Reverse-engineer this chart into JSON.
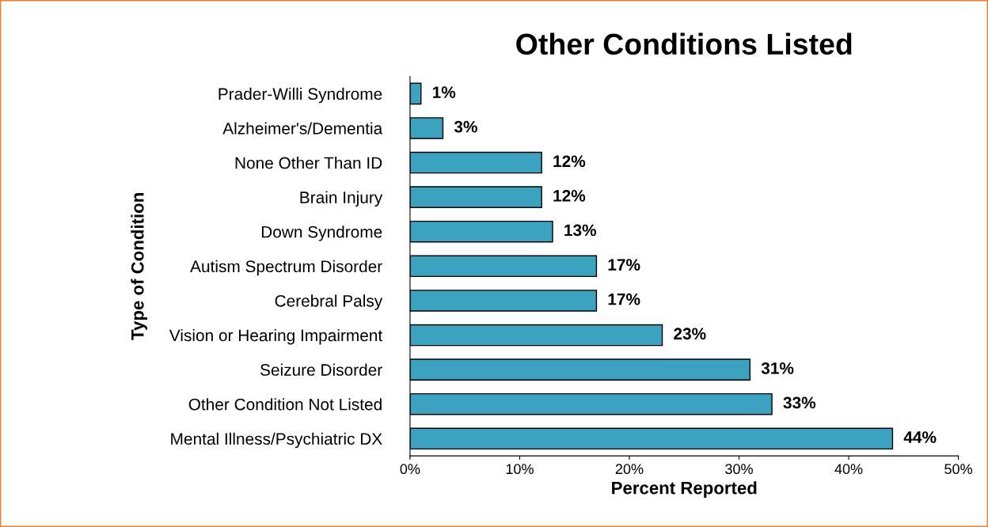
{
  "chart_data": {
    "type": "bar",
    "orientation": "horizontal",
    "title": "Other Conditions Listed",
    "xlabel": "Percent Reported",
    "ylabel": "Type of Condition",
    "categories": [
      "Prader-Willi Syndrome",
      "Alzheimer's/Dementia",
      "None Other Than ID",
      "Brain Injury",
      "Down Syndrome",
      "Autism Spectrum Disorder",
      "Cerebral Palsy",
      "Vision or Hearing Impairment",
      "Seizure Disorder",
      "Other Condition Not Listed",
      "Mental Illness/Psychiatric DX"
    ],
    "values": [
      1,
      3,
      12,
      12,
      13,
      17,
      17,
      23,
      31,
      33,
      44
    ],
    "value_labels": [
      "1%",
      "3%",
      "12%",
      "12%",
      "13%",
      "17%",
      "17%",
      "23%",
      "31%",
      "33%",
      "44%"
    ],
    "color": "#3ba3c0",
    "xlim": [
      0,
      50
    ],
    "xticks": [
      {
        "value": 0,
        "label": "0%"
      },
      {
        "value": 10,
        "label": "10%"
      },
      {
        "value": 20,
        "label": "20%"
      },
      {
        "value": 30,
        "label": "30%"
      },
      {
        "value": 40,
        "label": "40%"
      },
      {
        "value": 50,
        "label": "50%"
      }
    ],
    "grid": false,
    "legend": false
  }
}
